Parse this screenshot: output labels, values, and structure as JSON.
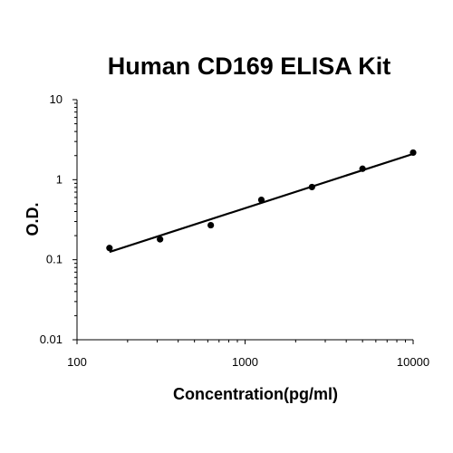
{
  "chart_data": {
    "type": "scatter",
    "title": "Human CD169 ELISA Kit",
    "xlabel": "Concentration(pg/ml)",
    "ylabel": "O.D.",
    "x_scale": "log",
    "y_scale": "log",
    "xlim": [
      100,
      10000
    ],
    "ylim": [
      0.01,
      10
    ],
    "x_ticks": [
      100,
      1000,
      10000
    ],
    "x_tick_labels": [
      "100",
      "1000",
      "10000"
    ],
    "y_ticks": [
      0.01,
      0.1,
      1,
      10
    ],
    "y_tick_labels": [
      "0.01",
      "0.1",
      "1",
      "10"
    ],
    "grid": false,
    "series": [
      {
        "points": [
          {
            "x": 156,
            "y": 0.14
          },
          {
            "x": 312,
            "y": 0.18
          },
          {
            "x": 625,
            "y": 0.27
          },
          {
            "x": 1250,
            "y": 0.56
          },
          {
            "x": 2500,
            "y": 0.81
          },
          {
            "x": 5000,
            "y": 1.37
          },
          {
            "x": 10000,
            "y": 2.18
          }
        ],
        "color": "#000000"
      }
    ],
    "fit_line": {
      "type": "power",
      "from": {
        "x": 156,
        "y": 0.125
      },
      "to": {
        "x": 10000,
        "y": 2.1
      },
      "color": "#000000"
    }
  }
}
